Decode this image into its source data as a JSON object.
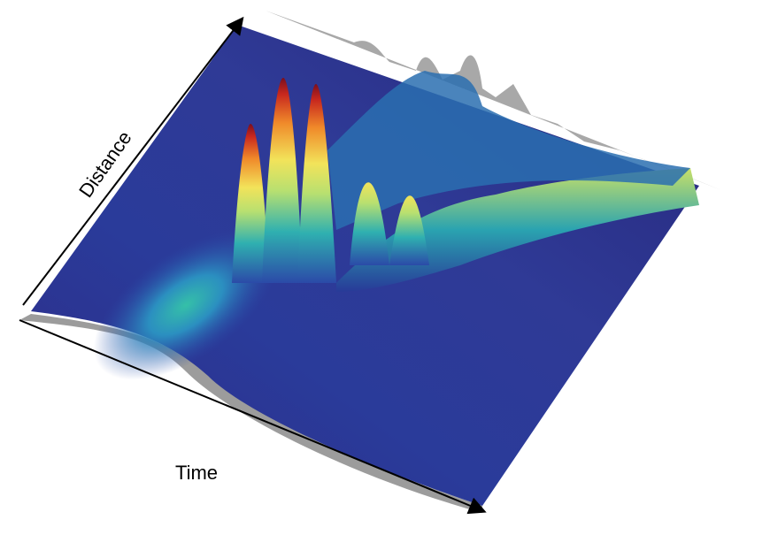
{
  "axes": {
    "distance_label": "Distance",
    "time_label": "Time"
  }
}
